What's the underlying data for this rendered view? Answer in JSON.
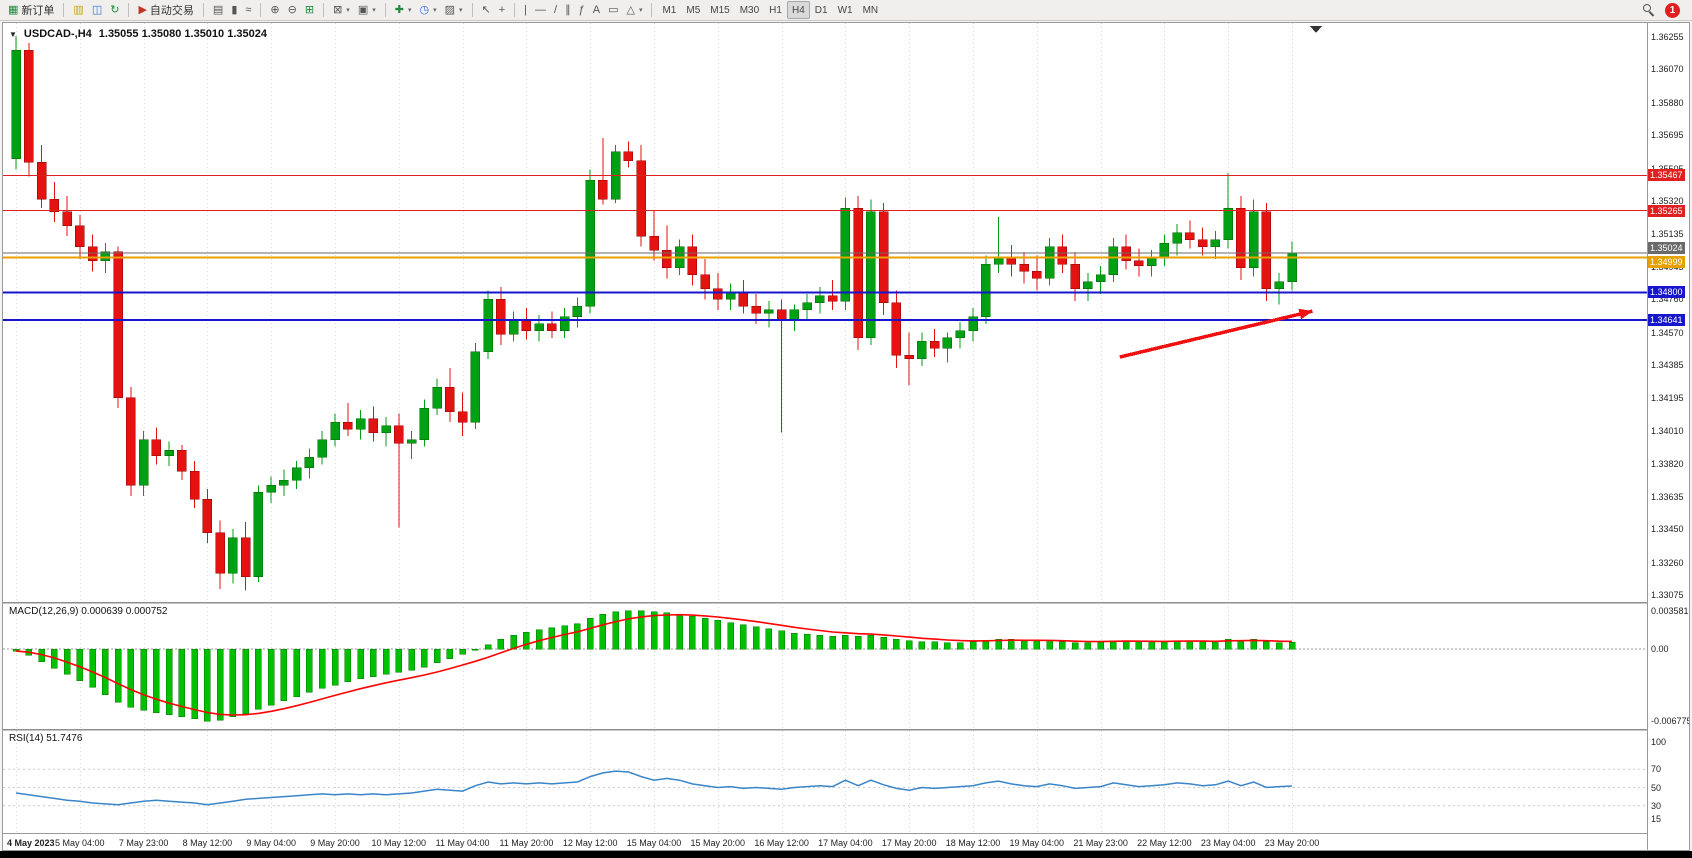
{
  "colors": {
    "bull": "#00A015",
    "bear": "#E51212",
    "bull_stroke": "#006400",
    "bear_stroke": "#8F0000",
    "macd_hist": "#00C000",
    "macd_hist_stroke": "#007800",
    "macd_signal": "#FF0000",
    "rsi_line": "#3A85C8",
    "grid": "#D8D8D8",
    "arrow": "#F01010"
  },
  "window": {
    "title_symbol": "USDCAD-,H4",
    "title_ohlc": "1.35055 1.35080 1.35010 1.35024",
    "one_click_glyph": "▼"
  },
  "indicators": {
    "macd_label": "MACD(12,26,9) 0.000639 0.000752",
    "rsi_label": "RSI(14) 51.7476"
  },
  "toolbar": {
    "caret_glyph": "▾",
    "notification_count": "1",
    "groups": [
      {
        "items": [
          {
            "name": "new-order-button",
            "glyph": "▦",
            "glyph_color": "#1f8a3b",
            "label": "新订单"
          }
        ]
      },
      {
        "items": [
          {
            "name": "charts-window-icon",
            "glyph": "▥",
            "glyph_color": "#d0a200"
          },
          {
            "name": "profiles-window-icon",
            "glyph": "◫",
            "glyph_color": "#3a6fd0"
          },
          {
            "name": "refresh-icon",
            "glyph": "↻",
            "glyph_color": "#1f8a3b"
          }
        ]
      },
      {
        "items": [
          {
            "name": "autotrading-button",
            "glyph": "▶",
            "glyph_color": "#c23424",
            "label": "自动交易"
          }
        ]
      },
      {
        "items": [
          {
            "name": "bar-chart-type-icon",
            "glyph": "▤"
          },
          {
            "name": "candlestick-type-icon",
            "glyph": "▮"
          },
          {
            "name": "line-chart-type-icon",
            "glyph": "≈"
          }
        ]
      },
      {
        "items": [
          {
            "name": "zoom-in-icon",
            "glyph": "⊕"
          },
          {
            "name": "zoom-out-icon",
            "glyph": "⊖"
          },
          {
            "name": "tile-windows-icon",
            "glyph": "⊞",
            "glyph_color": "#1f8a3b"
          }
        ]
      },
      {
        "items": [
          {
            "name": "new-chart-icon",
            "glyph": "⊠",
            "caret": true
          },
          {
            "name": "chart-profiles-icon",
            "glyph": "▣",
            "caret": true
          }
        ]
      },
      {
        "items": [
          {
            "name": "indicators-icon",
            "glyph": "✚",
            "glyph_color": "#1f8a3b",
            "caret": true
          },
          {
            "name": "periods-icon",
            "glyph": "◷",
            "glyph_color": "#3a6fd0",
            "caret": true
          },
          {
            "name": "templates-icon",
            "glyph": "▨",
            "caret": true
          }
        ]
      },
      {
        "items": [
          {
            "name": "cursor-icon",
            "glyph": "↖"
          },
          {
            "name": "crosshair-icon",
            "glyph": "+"
          }
        ]
      },
      {
        "items": [
          {
            "name": "vertical-line-icon",
            "glyph": "|"
          },
          {
            "name": "horizontal-line-icon",
            "glyph": "—"
          },
          {
            "name": "trendline-icon",
            "glyph": "/"
          },
          {
            "name": "equidistant-channel-icon",
            "glyph": "∥"
          },
          {
            "name": "fibonacci-icon",
            "glyph": "ƒ"
          },
          {
            "name": "text-icon",
            "glyph": "A"
          },
          {
            "name": "text-label-icon",
            "glyph": "▭"
          },
          {
            "name": "arrows-icon",
            "glyph": "△",
            "caret": true
          }
        ]
      },
      {
        "is_timeframes": true,
        "items": [
          {
            "name": "timeframe-m1",
            "label": "M1"
          },
          {
            "name": "timeframe-m5",
            "label": "M5"
          },
          {
            "name": "timeframe-m15",
            "label": "M15"
          },
          {
            "name": "timeframe-m30",
            "label": "M30"
          },
          {
            "name": "timeframe-h1",
            "label": "H1"
          },
          {
            "name": "timeframe-h4",
            "label": "H4",
            "active": true
          },
          {
            "name": "timeframe-d1",
            "label": "D1"
          },
          {
            "name": "timeframe-w1",
            "label": "W1"
          },
          {
            "name": "timeframe-mn",
            "label": "MN"
          }
        ]
      }
    ]
  },
  "chart_data": {
    "type": "candlestick",
    "symbol": "USDCAD",
    "timeframe": "H4",
    "ohlc_current": {
      "open": 1.35055,
      "high": 1.3508,
      "low": 1.3501,
      "close": 1.35024
    },
    "price_axis": {
      "ticks": [
        1.36255,
        1.3607,
        1.3588,
        1.35695,
        1.35505,
        1.3532,
        1.35135,
        1.34945,
        1.3476,
        1.3457,
        1.34385,
        1.34195,
        1.3401,
        1.3382,
        1.33635,
        1.3345,
        1.3326,
        1.33075
      ]
    },
    "time_labels": [
      "4 May 2023",
      "5 May 04:00",
      "7 May 23:00",
      "8 May 12:00",
      "9 May 04:00",
      "9 May 20:00",
      "10 May 12:00",
      "11 May 04:00",
      "11 May 20:00",
      "12 May 12:00",
      "15 May 04:00",
      "15 May 20:00",
      "16 May 12:00",
      "17 May 04:00",
      "17 May 20:00",
      "18 May 12:00",
      "19 May 04:00",
      "21 May 23:00",
      "22 May 12:00",
      "23 May 04:00",
      "23 May 20:00"
    ],
    "label_step": 5,
    "candles": [
      [
        1.3556,
        1.3626,
        1.355,
        1.3618
      ],
      [
        1.3618,
        1.3622,
        1.3546,
        1.3554
      ],
      [
        1.3554,
        1.3564,
        1.3528,
        1.3533
      ],
      [
        1.3533,
        1.3543,
        1.352,
        1.3526
      ],
      [
        1.3526,
        1.3535,
        1.3512,
        1.3518
      ],
      [
        1.3518,
        1.3524,
        1.3499,
        1.3506
      ],
      [
        1.3506,
        1.3513,
        1.3492,
        1.3498
      ],
      [
        1.3498,
        1.3508,
        1.3491,
        1.3503
      ],
      [
        1.3503,
        1.3506,
        1.3414,
        1.342
      ],
      [
        1.342,
        1.3426,
        1.3364,
        1.337
      ],
      [
        1.337,
        1.3401,
        1.3364,
        1.3396
      ],
      [
        1.3396,
        1.3403,
        1.3382,
        1.3387
      ],
      [
        1.3387,
        1.3395,
        1.3381,
        1.339
      ],
      [
        1.339,
        1.3393,
        1.3373,
        1.3378
      ],
      [
        1.3378,
        1.3384,
        1.3357,
        1.3362
      ],
      [
        1.3362,
        1.3368,
        1.3337,
        1.3343
      ],
      [
        1.3343,
        1.335,
        1.3311,
        1.332
      ],
      [
        1.332,
        1.3345,
        1.3314,
        1.334
      ],
      [
        1.334,
        1.3349,
        1.331,
        1.3318
      ],
      [
        1.3318,
        1.337,
        1.3315,
        1.3366
      ],
      [
        1.3366,
        1.3375,
        1.336,
        1.337
      ],
      [
        1.337,
        1.3379,
        1.3364,
        1.3373
      ],
      [
        1.3373,
        1.3384,
        1.3368,
        1.338
      ],
      [
        1.338,
        1.3391,
        1.3374,
        1.3386
      ],
      [
        1.3386,
        1.3401,
        1.3382,
        1.3396
      ],
      [
        1.3396,
        1.3411,
        1.3392,
        1.3406
      ],
      [
        1.3406,
        1.3417,
        1.3398,
        1.3402
      ],
      [
        1.3402,
        1.3413,
        1.3396,
        1.3408
      ],
      [
        1.3408,
        1.3415,
        1.3395,
        1.34
      ],
      [
        1.34,
        1.3409,
        1.3392,
        1.3404
      ],
      [
        1.3404,
        1.3411,
        1.3346,
        1.3394
      ],
      [
        1.3394,
        1.3401,
        1.3385,
        1.3396
      ],
      [
        1.3396,
        1.3419,
        1.3392,
        1.3414
      ],
      [
        1.3414,
        1.3431,
        1.341,
        1.3426
      ],
      [
        1.3426,
        1.3437,
        1.3406,
        1.3412
      ],
      [
        1.3412,
        1.3423,
        1.3398,
        1.3406
      ],
      [
        1.3406,
        1.3451,
        1.3402,
        1.3446
      ],
      [
        1.3446,
        1.3481,
        1.3442,
        1.3476
      ],
      [
        1.3476,
        1.3483,
        1.345,
        1.3456
      ],
      [
        1.3456,
        1.3469,
        1.3452,
        1.3464
      ],
      [
        1.3464,
        1.3471,
        1.3453,
        1.3458
      ],
      [
        1.3458,
        1.3467,
        1.3452,
        1.3462
      ],
      [
        1.3462,
        1.3469,
        1.3454,
        1.3458
      ],
      [
        1.3458,
        1.3471,
        1.3454,
        1.3466
      ],
      [
        1.3466,
        1.3477,
        1.346,
        1.3472
      ],
      [
        1.3472,
        1.355,
        1.3468,
        1.3544
      ],
      [
        1.3544,
        1.3568,
        1.353,
        1.3533
      ],
      [
        1.3533,
        1.3564,
        1.3531,
        1.356
      ],
      [
        1.356,
        1.3566,
        1.3551,
        1.3555
      ],
      [
        1.3555,
        1.3564,
        1.3506,
        1.3512
      ],
      [
        1.3512,
        1.3527,
        1.3498,
        1.3504
      ],
      [
        1.3504,
        1.3518,
        1.3488,
        1.3494
      ],
      [
        1.3494,
        1.351,
        1.349,
        1.3506
      ],
      [
        1.3506,
        1.3513,
        1.3484,
        1.349
      ],
      [
        1.349,
        1.3499,
        1.3476,
        1.3482
      ],
      [
        1.3482,
        1.3491,
        1.347,
        1.3476
      ],
      [
        1.3476,
        1.3485,
        1.347,
        1.348
      ],
      [
        1.348,
        1.3487,
        1.3468,
        1.3472
      ],
      [
        1.3472,
        1.3479,
        1.3462,
        1.3468
      ],
      [
        1.3468,
        1.3475,
        1.346,
        1.347
      ],
      [
        1.347,
        1.3476,
        1.34,
        1.3464
      ],
      [
        1.3464,
        1.3473,
        1.3458,
        1.347
      ],
      [
        1.347,
        1.3479,
        1.3464,
        1.3474
      ],
      [
        1.3474,
        1.3483,
        1.3468,
        1.3478
      ],
      [
        1.3478,
        1.3487,
        1.347,
        1.3475
      ],
      [
        1.3475,
        1.3534,
        1.347,
        1.3528
      ],
      [
        1.3528,
        1.3535,
        1.3447,
        1.3454
      ],
      [
        1.3454,
        1.3533,
        1.345,
        1.3526
      ],
      [
        1.3526,
        1.3531,
        1.3467,
        1.3474
      ],
      [
        1.3474,
        1.3481,
        1.3437,
        1.3444
      ],
      [
        1.3444,
        1.3457,
        1.3427,
        1.3442
      ],
      [
        1.3442,
        1.3457,
        1.3438,
        1.3452
      ],
      [
        1.3452,
        1.3459,
        1.3443,
        1.3448
      ],
      [
        1.3448,
        1.3457,
        1.344,
        1.3454
      ],
      [
        1.3454,
        1.3463,
        1.3448,
        1.3458
      ],
      [
        1.3458,
        1.3471,
        1.3452,
        1.3466
      ],
      [
        1.3466,
        1.3501,
        1.3462,
        1.3496
      ],
      [
        1.3496,
        1.3523,
        1.3491,
        1.35
      ],
      [
        1.35,
        1.3507,
        1.3489,
        1.3496
      ],
      [
        1.3496,
        1.3503,
        1.3485,
        1.3492
      ],
      [
        1.3492,
        1.3501,
        1.3481,
        1.3488
      ],
      [
        1.3488,
        1.3511,
        1.3484,
        1.3506
      ],
      [
        1.3506,
        1.3513,
        1.3491,
        1.3496
      ],
      [
        1.3496,
        1.3503,
        1.3475,
        1.3482
      ],
      [
        1.3482,
        1.3491,
        1.3475,
        1.3486
      ],
      [
        1.3486,
        1.3495,
        1.3479,
        1.349
      ],
      [
        1.349,
        1.3511,
        1.3486,
        1.3506
      ],
      [
        1.3506,
        1.3513,
        1.3493,
        1.3498
      ],
      [
        1.3498,
        1.3505,
        1.3489,
        1.3495
      ],
      [
        1.3495,
        1.3504,
        1.3489,
        1.35
      ],
      [
        1.35,
        1.3513,
        1.3495,
        1.3508
      ],
      [
        1.3508,
        1.3519,
        1.3501,
        1.3514
      ],
      [
        1.3514,
        1.3521,
        1.3505,
        1.351
      ],
      [
        1.351,
        1.3517,
        1.3501,
        1.3506
      ],
      [
        1.3506,
        1.3515,
        1.3499,
        1.351
      ],
      [
        1.351,
        1.3548,
        1.3505,
        1.3528
      ],
      [
        1.3528,
        1.3535,
        1.3487,
        1.3494
      ],
      [
        1.3494,
        1.3533,
        1.3489,
        1.3526
      ],
      [
        1.3526,
        1.3531,
        1.3475,
        1.3482
      ],
      [
        1.3482,
        1.3491,
        1.3473,
        1.3486
      ],
      [
        1.3486,
        1.3509,
        1.3481,
        1.35024
      ]
    ],
    "hlines": [
      {
        "price": 1.35467,
        "color": "#E02020",
        "width": 1,
        "label": "1.35467",
        "tag_bg": "#E02020",
        "tag_dy": 0
      },
      {
        "price": 1.35265,
        "color": "#E02020",
        "width": 1,
        "label": "1.35265",
        "tag_bg": "#E02020",
        "tag_dy": 0
      },
      {
        "price": 1.35024,
        "color": "#6A6A6A",
        "width": 1,
        "label": "1.35024",
        "tag_bg": "#6A6A6A",
        "tag_dy": -5
      },
      {
        "price": 1.34999,
        "color": "#E8A000",
        "width": 2,
        "label": "1.34999",
        "tag_bg": "#E8A000",
        "tag_dy": 5
      },
      {
        "price": 1.348,
        "color": "#1616CC",
        "width": 2,
        "label": "1.34800",
        "tag_bg": "#1616CC",
        "tag_dy": 0
      },
      {
        "price": 1.34641,
        "color": "#1616CC",
        "width": 2,
        "label": "1.34641",
        "tag_bg": "#1616CC",
        "tag_dy": 0
      }
    ],
    "arrow": {
      "from": {
        "bar": 86.5,
        "price": 1.34431
      },
      "to": {
        "bar": 101.6,
        "price": 1.34693
      },
      "width": 3.5
    },
    "macd": {
      "params": "12,26,9",
      "value": 0.000639,
      "signal": 0.000752,
      "axis_labels": [
        "0.003581",
        "0.00",
        "-0.006775"
      ],
      "histogram": [
        -0.0002,
        -0.0006,
        -0.0012,
        -0.0018,
        -0.0024,
        -0.003,
        -0.0036,
        -0.0043,
        -0.005,
        -0.0055,
        -0.0058,
        -0.006,
        -0.0062,
        -0.0064,
        -0.0066,
        -0.0068,
        -0.0067,
        -0.0064,
        -0.0061,
        -0.0057,
        -0.0053,
        -0.0049,
        -0.0045,
        -0.0041,
        -0.0037,
        -0.0034,
        -0.0031,
        -0.0028,
        -0.0026,
        -0.0024,
        -0.0022,
        -0.002,
        -0.0017,
        -0.0013,
        -0.0009,
        -0.0005,
        -0.0001,
        0.0004,
        0.0009,
        0.0013,
        0.0016,
        0.0018,
        0.002,
        0.0022,
        0.0024,
        0.0029,
        0.0033,
        0.0035,
        0.0036,
        0.0036,
        0.0035,
        0.0034,
        0.0033,
        0.0031,
        0.0029,
        0.0027,
        0.0025,
        0.0023,
        0.0021,
        0.0019,
        0.0017,
        0.0015,
        0.0014,
        0.0013,
        0.0012,
        0.0013,
        0.0012,
        0.0013,
        0.0011,
        0.0009,
        0.0008,
        0.0007,
        0.0007,
        0.0006,
        0.0006,
        0.0007,
        0.0008,
        0.0009,
        0.0009,
        0.0008,
        0.0008,
        0.0008,
        0.0007,
        0.0006,
        0.0006,
        0.0007,
        0.0008,
        0.0008,
        0.0007,
        0.0007,
        0.0007,
        0.0008,
        0.0008,
        0.0007,
        0.0007,
        0.0009,
        0.0008,
        0.0009,
        0.0007,
        0.0006,
        0.00064
      ]
    },
    "rsi": {
      "period": 14,
      "value": 51.7476,
      "axis_labels": [
        "100",
        "70",
        "50",
        "30",
        "15"
      ],
      "values": [
        44,
        42,
        40,
        38,
        36,
        35,
        33,
        32,
        31,
        33,
        35,
        36,
        35,
        34,
        33,
        31,
        33,
        35,
        37,
        38,
        39,
        40,
        41,
        42,
        43,
        42,
        43,
        42,
        43,
        42,
        43,
        44,
        46,
        48,
        47,
        46,
        52,
        56,
        54,
        55,
        54,
        55,
        54,
        55,
        56,
        62,
        66,
        68,
        67,
        62,
        58,
        60,
        58,
        54,
        52,
        50,
        51,
        49,
        50,
        49,
        48,
        50,
        51,
        52,
        51,
        58,
        52,
        58,
        53,
        49,
        47,
        50,
        49,
        50,
        51,
        52,
        55,
        57,
        54,
        52,
        51,
        54,
        52,
        49,
        50,
        51,
        55,
        53,
        51,
        52,
        53,
        55,
        54,
        52,
        53,
        57,
        52,
        56,
        50,
        51,
        51.7
      ]
    }
  }
}
